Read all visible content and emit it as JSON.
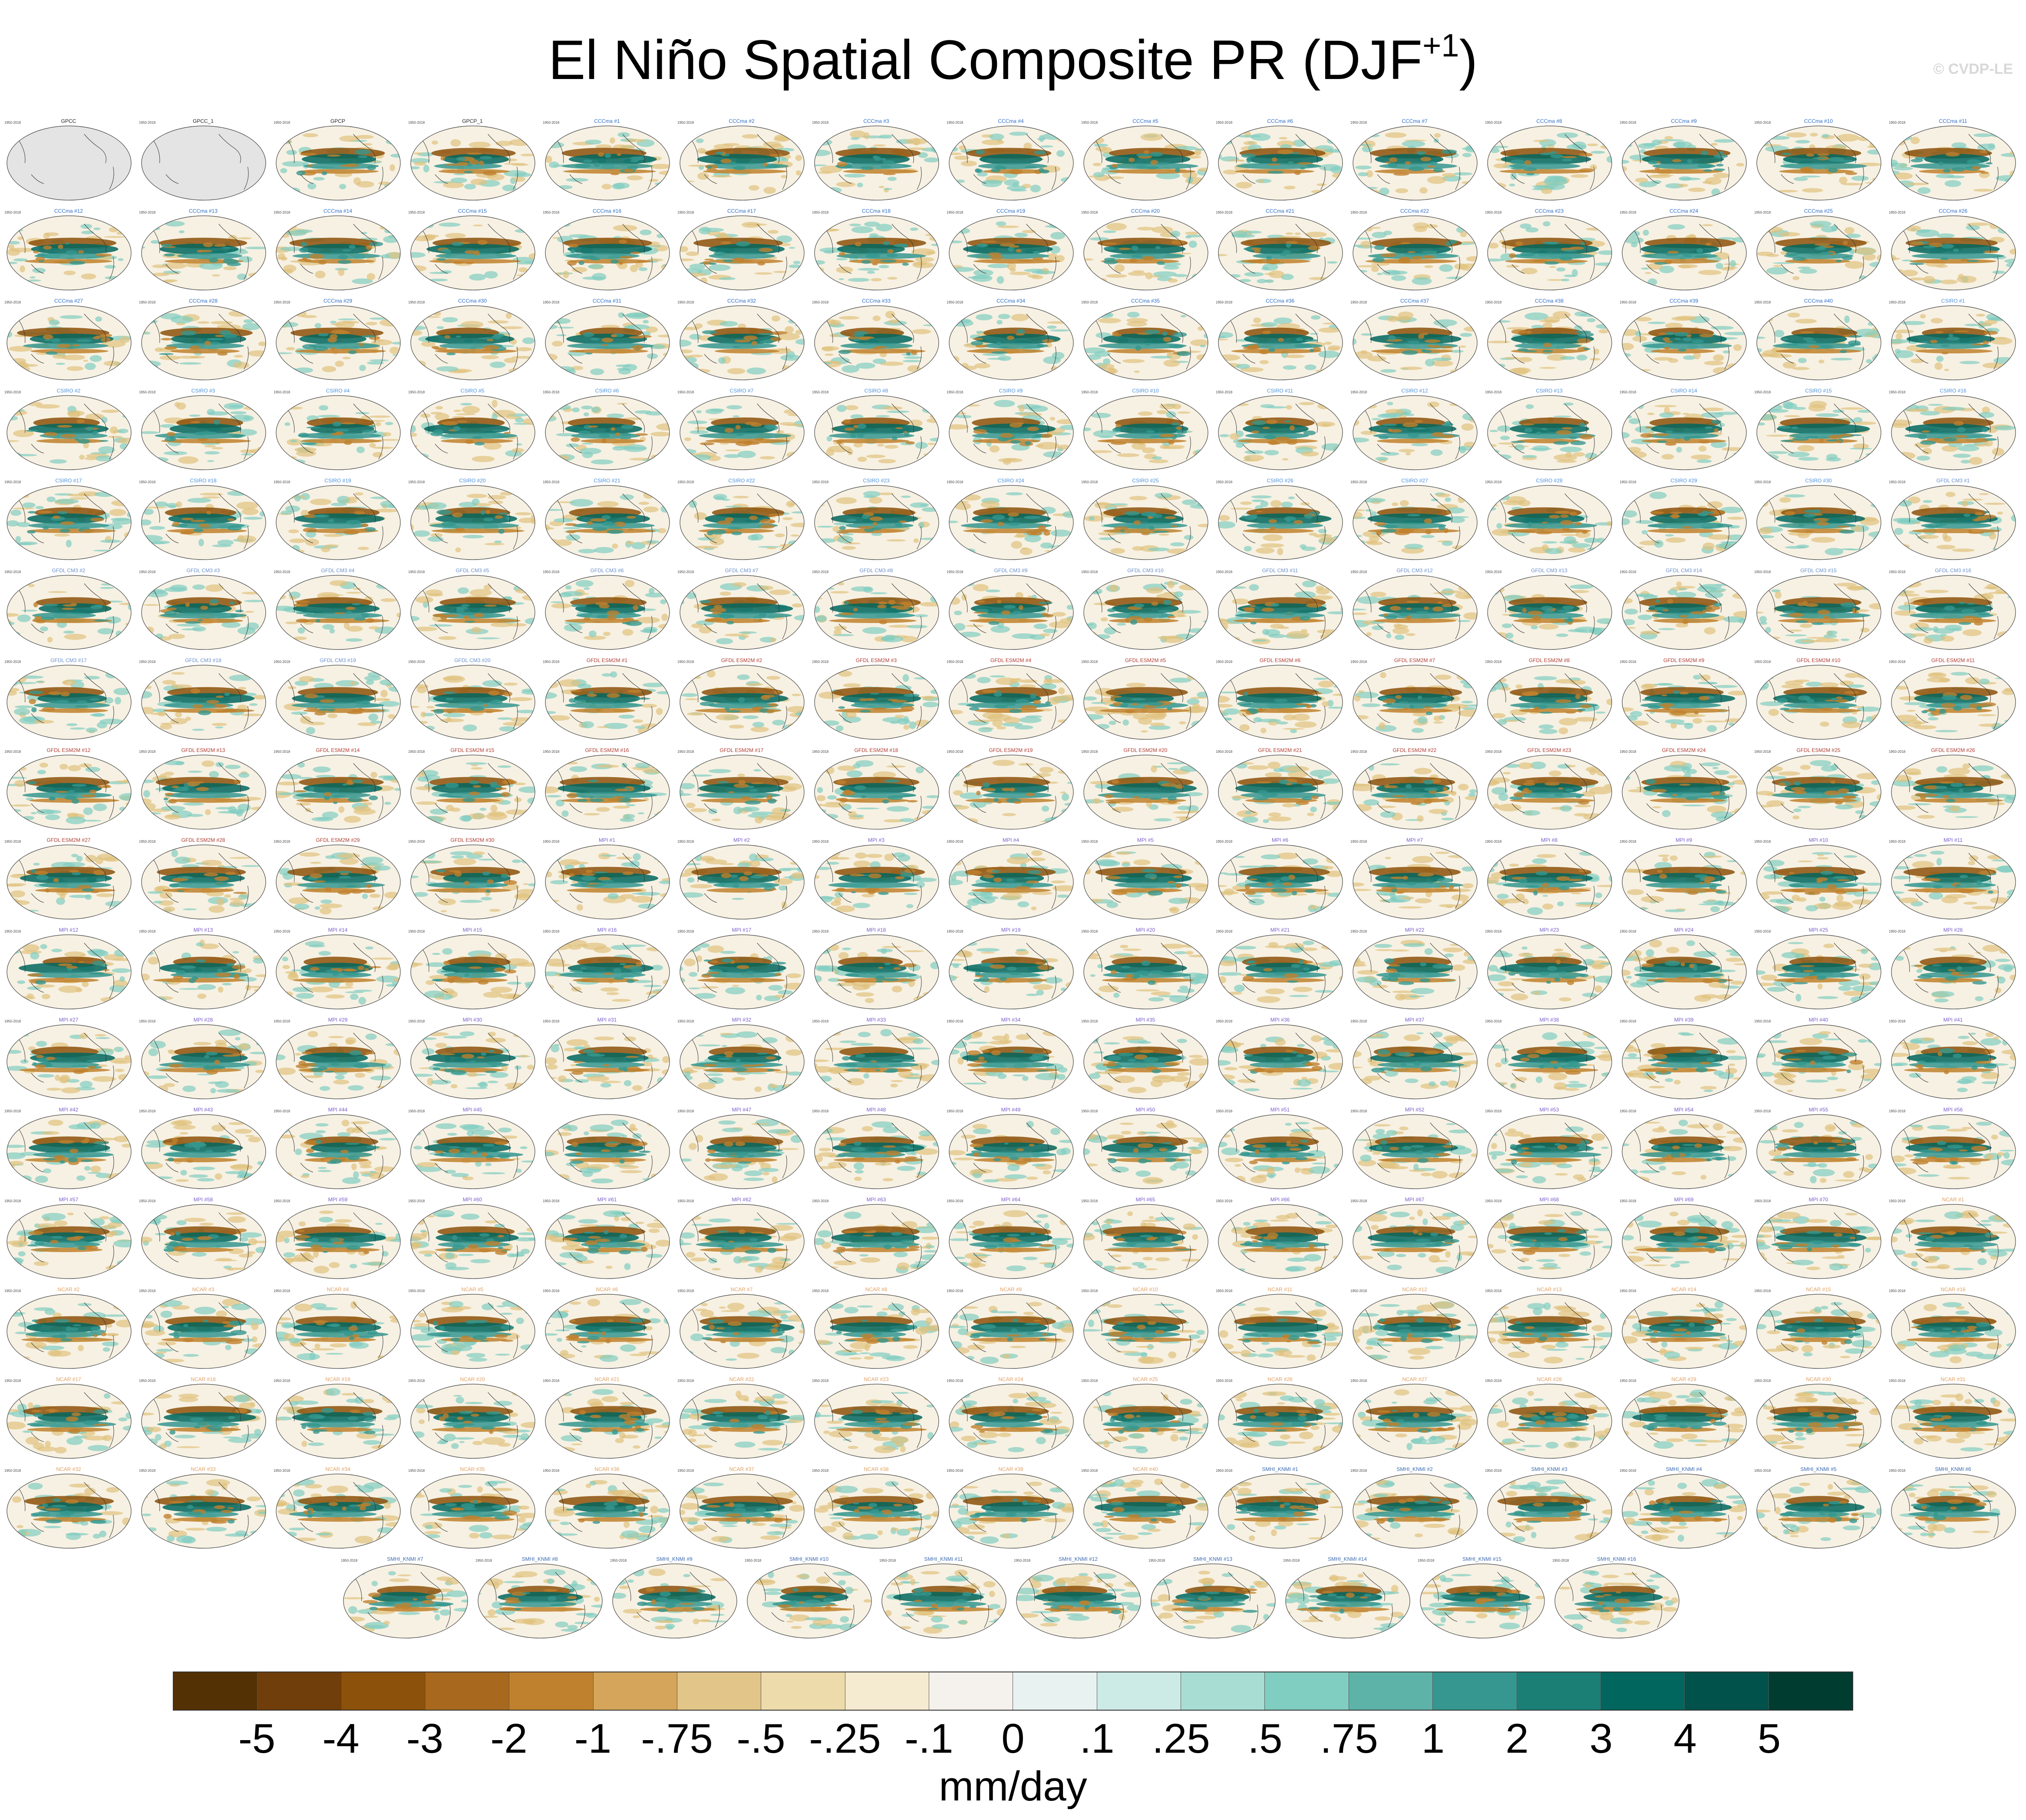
{
  "figure": {
    "title_main": "El Niño Spatial Composite PR (DJF",
    "title_sup": "+1",
    "title_close": ")",
    "credit": "© CVDP-LE"
  },
  "panels": {
    "rows": [
      [
        "GPCC",
        "GPCC_1",
        "GPCP",
        "GPCP_1",
        "CCCma #1",
        "CCCma #2",
        "CCCma #3",
        "CCCma #4",
        "CCCma #5",
        "CCCma #6",
        "CCCma #7",
        "CCCma #8",
        "CCCma #9",
        "CCCma #10",
        "CCCma #11"
      ],
      [
        "CCCma #12",
        "CCCma #13",
        "CCCma #14",
        "CCCma #15",
        "CCCma #16",
        "CCCma #17",
        "CCCma #18",
        "CCCma #19",
        "CCCma #20",
        "CCCma #21",
        "CCCma #22",
        "CCCma #23",
        "CCCma #24",
        "CCCma #25",
        "CCCma #26"
      ],
      [
        "CCCma #27",
        "CCCma #28",
        "CCCma #29",
        "CCCma #30",
        "CCCma #31",
        "CCCma #32",
        "CCCma #33",
        "CCCma #34",
        "CCCma #35",
        "CCCma #36",
        "CCCma #37",
        "CCCma #38",
        "CCCma #39",
        "CCCma #40",
        "CSIRO #1"
      ],
      [
        "CSIRO #2",
        "CSIRO #3",
        "CSIRO #4",
        "CSIRO #5",
        "CSIRO #6",
        "CSIRO #7",
        "CSIRO #8",
        "CSIRO #9",
        "CSIRO #10",
        "CSIRO #11",
        "CSIRO #12",
        "CSIRO #13",
        "CSIRO #14",
        "CSIRO #15",
        "CSIRO #16"
      ],
      [
        "CSIRO #17",
        "CSIRO #18",
        "CSIRO #19",
        "CSIRO #20",
        "CSIRO #21",
        "CSIRO #22",
        "CSIRO #23",
        "CSIRO #24",
        "CSIRO #25",
        "CSIRO #26",
        "CSIRO #27",
        "CSIRO #28",
        "CSIRO #29",
        "CSIRO #30",
        "GFDL CM3 #1"
      ],
      [
        "GFDL CM3 #2",
        "GFDL CM3 #3",
        "GFDL CM3 #4",
        "GFDL CM3 #5",
        "GFDL CM3 #6",
        "GFDL CM3 #7",
        "GFDL CM3 #8",
        "GFDL CM3 #9",
        "GFDL CM3 #10",
        "GFDL CM3 #11",
        "GFDL CM3 #12",
        "GFDL CM3 #13",
        "GFDL CM3 #14",
        "GFDL CM3 #15",
        "GFDL CM3 #16"
      ],
      [
        "GFDL CM3 #17",
        "GFDL CM3 #18",
        "GFDL CM3 #19",
        "GFDL CM3 #20",
        "GFDL ESM2M #1",
        "GFDL ESM2M #2",
        "GFDL ESM2M #3",
        "GFDL ESM2M #4",
        "GFDL ESM2M #5",
        "GFDL ESM2M #6",
        "GFDL ESM2M #7",
        "GFDL ESM2M #8",
        "GFDL ESM2M #9",
        "GFDL ESM2M #10",
        "GFDL ESM2M #11"
      ],
      [
        "GFDL ESM2M #12",
        "GFDL ESM2M #13",
        "GFDL ESM2M #14",
        "GFDL ESM2M #15",
        "GFDL ESM2M #16",
        "GFDL ESM2M #17",
        "GFDL ESM2M #18",
        "GFDL ESM2M #19",
        "GFDL ESM2M #20",
        "GFDL ESM2M #21",
        "GFDL ESM2M #22",
        "GFDL ESM2M #23",
        "GFDL ESM2M #24",
        "GFDL ESM2M #25",
        "GFDL ESM2M #26"
      ],
      [
        "GFDL ESM2M #27",
        "GFDL ESM2M #28",
        "GFDL ESM2M #29",
        "GFDL ESM2M #30",
        "MPI #1",
        "MPI #2",
        "MPI #3",
        "MPI #4",
        "MPI #5",
        "MPI #6",
        "MPI #7",
        "MPI #8",
        "MPI #9",
        "MPI #10",
        "MPI #11"
      ],
      [
        "MPI #12",
        "MPI #13",
        "MPI #14",
        "MPI #15",
        "MPI #16",
        "MPI #17",
        "MPI #18",
        "MPI #19",
        "MPI #20",
        "MPI #21",
        "MPI #22",
        "MPI #23",
        "MPI #24",
        "MPI #25",
        "MPI #26"
      ],
      [
        "MPI #27",
        "MPI #28",
        "MPI #29",
        "MPI #30",
        "MPI #31",
        "MPI #32",
        "MPI #33",
        "MPI #34",
        "MPI #35",
        "MPI #36",
        "MPI #37",
        "MPI #38",
        "MPI #39",
        "MPI #40",
        "MPI #41"
      ],
      [
        "MPI #42",
        "MPI #43",
        "MPI #44",
        "MPI #45",
        "",
        "MPI #47",
        "MPI #48",
        "MPI #49",
        "MPI #50",
        "MPI #51",
        "MPI #52",
        "MPI #53",
        "MPI #54",
        "MPI #55",
        "MPI #56"
      ],
      [
        "MPI #57",
        "MPI #58",
        "MPI #59",
        "MPI #60",
        "MPI #61",
        "MPI #62",
        "MPI #63",
        "MPI #64",
        "MPI #65",
        "MPI #66",
        "MPI #67",
        "MPI #68",
        "MPI #69",
        "MPI #70",
        "NCAR #1"
      ],
      [
        "NCAR #2",
        "NCAR #3",
        "NCAR #4",
        "NCAR #5",
        "NCAR #6",
        "NCAR #7",
        "NCAR #8",
        "NCAR #9",
        "NCAR #10",
        "NCAR #11",
        "NCAR #12",
        "NCAR #13",
        "NCAR #14",
        "NCAR #15",
        "NCAR #16"
      ],
      [
        "NCAR #17",
        "NCAR #18",
        "NCAR #19",
        "NCAR #20",
        "NCAR #21",
        "NCAR #22",
        "NCAR #23",
        "NCAR #24",
        "NCAR #25",
        "NCAR #26",
        "NCAR #27",
        "NCAR #28",
        "NCAR #29",
        "NCAR #30",
        "NCAR #31"
      ],
      [
        "NCAR #32",
        "NCAR #33",
        "NCAR #34",
        "NCAR #35",
        "NCAR #36",
        "NCAR #37",
        "NCAR #38",
        "NCAR #39",
        "NCAR #40",
        "SMHI_KNMI #1",
        "SMHI_KNMI #2",
        "SMHI_KNMI #3",
        "SMHI_KNMI #4",
        "SMHI_KNMI #5",
        "SMHI_KNMI #6"
      ],
      [
        "SMHI_KNMI #7",
        "SMHI_KNMI #8",
        "SMHI_KNMI #9",
        "SMHI_KNMI #10",
        "SMHI_KNMI #11",
        "SMHI_KNMI #12",
        "SMHI_KNMI #13",
        "SMHI_KNMI #14",
        "SMHI_KNMI #15",
        "SMHI_KNMI #16"
      ]
    ],
    "year_label": "1950-2018",
    "group_colors": {
      "GPCC": "#222222",
      "GPCP": "#222222",
      "CCCma": "#2b6cc4",
      "CSIRO": "#4a90d9",
      "GFDL CM3": "#6a8fc8",
      "GFDL ESM2M": "#b03a2e",
      "MPI": "#7a5cc8",
      "NCAR": "#e0a060",
      "SMHI_KNMI": "#3a6ab0"
    }
  },
  "chart_data": {
    "type": "heatmap",
    "title": "El Niño Spatial Composite PR (DJF+1)",
    "colorbar": {
      "units": "mm/day",
      "tick_labels": [
        "-5",
        "-4",
        "-3",
        "-2",
        "-1",
        "-.75",
        "-.5",
        "-.25",
        "-.1",
        "0",
        ".1",
        ".25",
        ".5",
        ".75",
        "1",
        "2",
        "3",
        "4",
        "5"
      ],
      "colors": [
        "#543005",
        "#6f3e0a",
        "#8c510a",
        "#a8691f",
        "#bf812d",
        "#d4a55a",
        "#e2c588",
        "#eddbac",
        "#f5ebd0",
        "#f5f2ee",
        "#e8f3f1",
        "#cdebe6",
        "#a8ddd4",
        "#80cdc1",
        "#5db3a8",
        "#35978f",
        "#1b7f76",
        "#01665e",
        "#01524a",
        "#003c30"
      ]
    }
  }
}
